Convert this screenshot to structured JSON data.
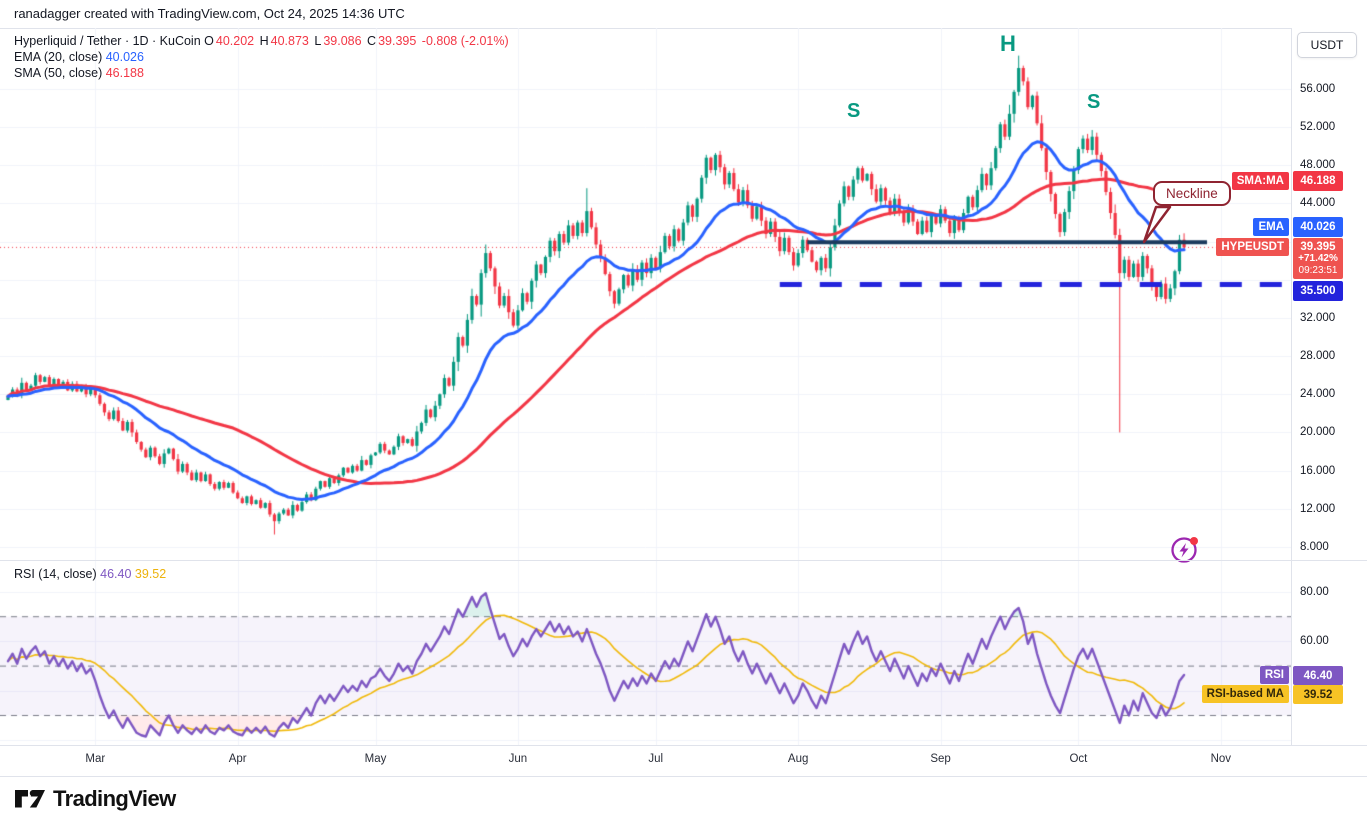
{
  "attribution": "ranadagger created with TradingView.com, Oct 24, 2025 14:36 UTC",
  "header": {
    "title": "Hyperliquid / Tether · 1D · KuCoin",
    "o_label": "O",
    "o": "40.202",
    "h_label": "H",
    "h": "40.873",
    "l_label": "L",
    "l": "39.086",
    "c_label": "C",
    "c": "39.395",
    "change": "-0.808 (-2.01%)",
    "ema_label": "EMA (20, close)",
    "ema_value": "40.026",
    "sma_label": "SMA (50, close)",
    "sma_value": "46.188"
  },
  "annotations": {
    "left_shoulder": "S",
    "head": "H",
    "right_shoulder": "S",
    "neckline": "Neckline"
  },
  "price_axis": {
    "currency_button": "USDT",
    "ticks": [
      {
        "value": 56,
        "label": "56.000"
      },
      {
        "value": 52,
        "label": "52.000"
      },
      {
        "value": 48,
        "label": "48.000"
      },
      {
        "value": 44,
        "label": "44.000"
      },
      {
        "value": 32,
        "label": "32.000"
      },
      {
        "value": 28,
        "label": "28.000"
      },
      {
        "value": 24,
        "label": "24.000"
      },
      {
        "value": 20,
        "label": "20.000"
      },
      {
        "value": 16,
        "label": "16.000"
      },
      {
        "value": 12,
        "label": "12.000"
      },
      {
        "value": 8,
        "label": "8.000"
      }
    ],
    "badges": {
      "sma_tag": "SMA:MA",
      "sma_value": "46.188",
      "ema_tag": "EMA",
      "ema_value": "40.026",
      "symbol_tag": "HYPEUSDT",
      "last_price": "39.395",
      "change_pct": "+71.42%",
      "countdown": "09:23:51",
      "support_value": "35.500"
    }
  },
  "rsi_panel": {
    "legend_label": "RSI (14, close)",
    "rsi_value": "46.40",
    "rsi_ma_value": "39.52",
    "ticks": [
      {
        "value": 80,
        "label": "80.00"
      },
      {
        "value": 60,
        "label": "60.00"
      }
    ],
    "badges": {
      "rsi_tag": "RSI",
      "rsi_value": "46.40",
      "rsi_ma_tag": "RSI-based MA",
      "rsi_ma_value": "39.52"
    }
  },
  "time_axis": {
    "months": [
      {
        "label": "Mar",
        "day": 19
      },
      {
        "label": "Apr",
        "day": 50
      },
      {
        "label": "May",
        "day": 80
      },
      {
        "label": "Jun",
        "day": 111
      },
      {
        "label": "Jul",
        "day": 141
      },
      {
        "label": "Aug",
        "day": 172
      },
      {
        "label": "Sep",
        "day": 203
      },
      {
        "label": "Oct",
        "day": 233
      },
      {
        "label": "Nov",
        "day": 264
      }
    ]
  },
  "logo": {
    "word": "TradingView"
  },
  "chart_data": {
    "type": "candlestick",
    "symbol": "HYPEUSDT",
    "timeframe": "1D",
    "x_unit": "day index (day 0 ≈ Feb 10, 2025, last day = Oct 24, 2025)",
    "price_range_shown": [
      8,
      56
    ],
    "rsi_range_dashed_levels": [
      70,
      50,
      30
    ],
    "current_price": 39.395,
    "support_level": 35.5,
    "neckline_level": 39.93,
    "neckline_day_span": [
      174,
      261
    ],
    "support_day_span": [
      168,
      280
    ],
    "closes": [
      23.8,
      24.5,
      23.9,
      25.2,
      24.4,
      24.9,
      26.0,
      25.3,
      25.8,
      24.9,
      25.6,
      24.8,
      25.3,
      24.4,
      25.1,
      24.3,
      24.8,
      24.0,
      24.6,
      23.9,
      23.0,
      22.1,
      21.4,
      22.3,
      21.2,
      20.2,
      21.1,
      20.0,
      19.0,
      18.2,
      17.4,
      18.4,
      17.5,
      16.7,
      17.8,
      18.3,
      17.2,
      15.9,
      16.7,
      15.8,
      15.0,
      15.8,
      14.9,
      15.6,
      14.6,
      14.1,
      14.8,
      14.2,
      14.7,
      13.7,
      13.1,
      12.6,
      13.3,
      12.5,
      12.9,
      12.1,
      12.6,
      11.4,
      10.7,
      11.5,
      11.9,
      11.3,
      12.4,
      11.8,
      12.7,
      13.5,
      12.9,
      14.1,
      14.9,
      14.3,
      15.2,
      14.7,
      15.5,
      16.3,
      15.8,
      16.5,
      16.0,
      17.1,
      16.6,
      17.6,
      17.9,
      18.8,
      18.1,
      17.7,
      18.5,
      19.6,
      18.9,
      19.3,
      18.6,
      20.1,
      21.0,
      22.4,
      21.6,
      22.8,
      24.0,
      25.7,
      24.9,
      27.4,
      30.0,
      29.1,
      31.8,
      34.3,
      33.4,
      36.7,
      38.8,
      37.2,
      35.3,
      33.3,
      34.3,
      32.6,
      31.2,
      32.8,
      34.6,
      33.7,
      35.9,
      37.6,
      36.7,
      38.4,
      40.1,
      39.0,
      40.8,
      39.9,
      41.7,
      40.6,
      42.0,
      40.9,
      43.2,
      41.5,
      39.7,
      38.3,
      36.6,
      34.8,
      33.5,
      35.0,
      36.5,
      35.4,
      37.1,
      36.0,
      37.8,
      36.7,
      38.3,
      37.2,
      38.9,
      40.6,
      39.5,
      41.3,
      40.1,
      42.0,
      43.8,
      42.6,
      44.5,
      46.7,
      48.8,
      47.5,
      49.1,
      47.8,
      46.0,
      47.2,
      45.5,
      44.1,
      45.4,
      43.8,
      42.4,
      43.7,
      42.2,
      40.8,
      42.1,
      40.5,
      39.0,
      40.4,
      38.9,
      37.5,
      38.8,
      40.2,
      39.1,
      37.9,
      37.0,
      38.3,
      37.2,
      39.4,
      41.7,
      44.0,
      45.8,
      44.7,
      46.5,
      47.7,
      46.4,
      47.1,
      45.5,
      44.2,
      45.6,
      44.3,
      42.9,
      44.5,
      43.2,
      42.0,
      43.4,
      42.1,
      40.8,
      42.2,
      41.0,
      42.7,
      41.9,
      43.4,
      42.2,
      40.9,
      42.4,
      41.2,
      43.0,
      44.7,
      43.6,
      45.4,
      47.1,
      45.9,
      47.7,
      49.8,
      52.3,
      51.0,
      53.4,
      55.7,
      58.2,
      56.8,
      54.1,
      55.3,
      52.4,
      49.8,
      47.3,
      45.0,
      42.9,
      41.0,
      43.1,
      45.3,
      47.5,
      49.7,
      50.8,
      49.6,
      51.0,
      49.1,
      47.4,
      45.2,
      43.0,
      40.7,
      36.7,
      38.1,
      36.3,
      37.7,
      36.3,
      38.5,
      37.2,
      35.4,
      34.2,
      35.6,
      34.0,
      35.1,
      36.9,
      40.2,
      39.395
    ],
    "ohlc_overrides": {
      "58": {
        "l": 9.3
      },
      "104": {
        "h": 39.7
      },
      "126": {
        "h": 45.6
      },
      "220": {
        "h": 59.5
      },
      "236": {
        "h": 51.7
      },
      "242": {
        "l": 20.0
      },
      "256": {
        "o": 40.202,
        "h": 40.873,
        "l": 39.086,
        "c": 39.395
      }
    },
    "indicators": {
      "ema_period": 20,
      "sma_period": 50,
      "rsi_period": 14,
      "rsi_ma_period": 14
    },
    "rsi_values": [
      52,
      55,
      51,
      57,
      53,
      56,
      58,
      54,
      56,
      51,
      54,
      50,
      53,
      49,
      52,
      48,
      51,
      47,
      49,
      44,
      38,
      33,
      29,
      32,
      28,
      25,
      29,
      26,
      23,
      22,
      21.5,
      26,
      24,
      22,
      27,
      30,
      26,
      23,
      26,
      24,
      22.5,
      25,
      23,
      26,
      23.5,
      22.5,
      25,
      24,
      26,
      23.5,
      22.5,
      22,
      25,
      23,
      25,
      23,
      25.5,
      22.5,
      21.5,
      25,
      27,
      25,
      29,
      27,
      30,
      33,
      30,
      35,
      38,
      35,
      38.5,
      36,
      39,
      42,
      39.5,
      42,
      40,
      44,
      41.5,
      45,
      46,
      49,
      46,
      44,
      47,
      51,
      48,
      50,
      47,
      52,
      55,
      59,
      56,
      59,
      62,
      66,
      63,
      68,
      73,
      70,
      74,
      78,
      74,
      78,
      79.5,
      73,
      67,
      61,
      63,
      58,
      54,
      57,
      61,
      58,
      62,
      65,
      62,
      65,
      68,
      64,
      67,
      63,
      66,
      62,
      64,
      60,
      65,
      60,
      55,
      51,
      46,
      40,
      36,
      40,
      44,
      41,
      45,
      42,
      46,
      43,
      47,
      44,
      48,
      52,
      49,
      53,
      50,
      55,
      60,
      56,
      61,
      66,
      71,
      66,
      70,
      65,
      59,
      62,
      56,
      52,
      56,
      51,
      47,
      51,
      47,
      43,
      47,
      43,
      39,
      43,
      39,
      35,
      38,
      43,
      40,
      36,
      33,
      38,
      35,
      41,
      47,
      53,
      59,
      55,
      60,
      64,
      59,
      62,
      56,
      52,
      56,
      52,
      48,
      53,
      49,
      45,
      50,
      46,
      42,
      47,
      44,
      49,
      46,
      51,
      47,
      43,
      48,
      44,
      50,
      55,
      51,
      56,
      61,
      57,
      62,
      66,
      70,
      65,
      69,
      72,
      73.5,
      68,
      59,
      63,
      55,
      49,
      43,
      38,
      34,
      31,
      37,
      43,
      49,
      54,
      57,
      53,
      57,
      52,
      47,
      42,
      37,
      32,
      27,
      34,
      30,
      36,
      32,
      39,
      35,
      31,
      29,
      34,
      30,
      33,
      38,
      44,
      46.4
    ],
    "colors": {
      "up": "#089981",
      "down": "#f23645",
      "ema": "#2962ff",
      "sma": "#f23645",
      "rsi": "#7e57c2",
      "rsi_ma": "#f0b90b",
      "neckline": "#1c3b5e",
      "support": "#2323dc",
      "price_dotted": "#f23645",
      "grid": "#f0f3fa",
      "band": "rgba(126,87,194,0.07)",
      "over_fill": "rgba(8,153,129,0.14)",
      "under_fill": "rgba(255,82,82,0.12)",
      "dashed_level": "#787b86"
    }
  }
}
